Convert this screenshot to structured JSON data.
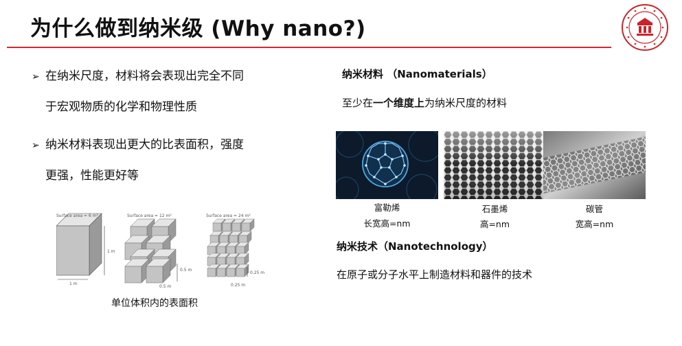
{
  "title": "为什么做到纳米级 (Why nano?)",
  "left": {
    "bullet1_line1": "在纳米尺度，材料将会表现出完全不同",
    "bullet1_line2": "于宏观物质的化学和物理性质",
    "bullet2_line1": "纳米材料表现出更大的比表面积，强度",
    "bullet2_line2": "更强，性能更好等",
    "figure": {
      "caption": "单位体积内的表面积",
      "cube1_area": "Surface area = 6 m²",
      "cube2_area": "Surface area = 12 m²",
      "cube3_area": "Surface area = 24 m²",
      "cube1_side": "1 m",
      "cube1_height": "1 m",
      "cube2_side": "0.5 m",
      "cube2_height": "0.5 m",
      "cube3_side": "0.25 m",
      "cube3_height": "0.25 m"
    }
  },
  "right": {
    "nanomaterials_heading": "纳米材料 （Nanomaterials）",
    "nanomaterials_def_pre": "至少在",
    "nanomaterials_def_bold": "一个维度上",
    "nanomaterials_def_post": "为纳米尺度的材料",
    "materials": [
      {
        "name": "富勒烯",
        "dims": "长宽高=nm"
      },
      {
        "name": "石墨烯",
        "dims": "高=nm"
      },
      {
        "name": "碳管",
        "dims": "宽高=nm"
      }
    ],
    "nanotech_heading": "纳米技术（Nanotechnology）",
    "nanotech_def": "在原子或分子水平上制造材料和器件的技术"
  },
  "colors": {
    "accent_red": "#d6272d",
    "photo_dark": "#0c1a2b",
    "fullerene_blue": "#4fa8e0"
  }
}
